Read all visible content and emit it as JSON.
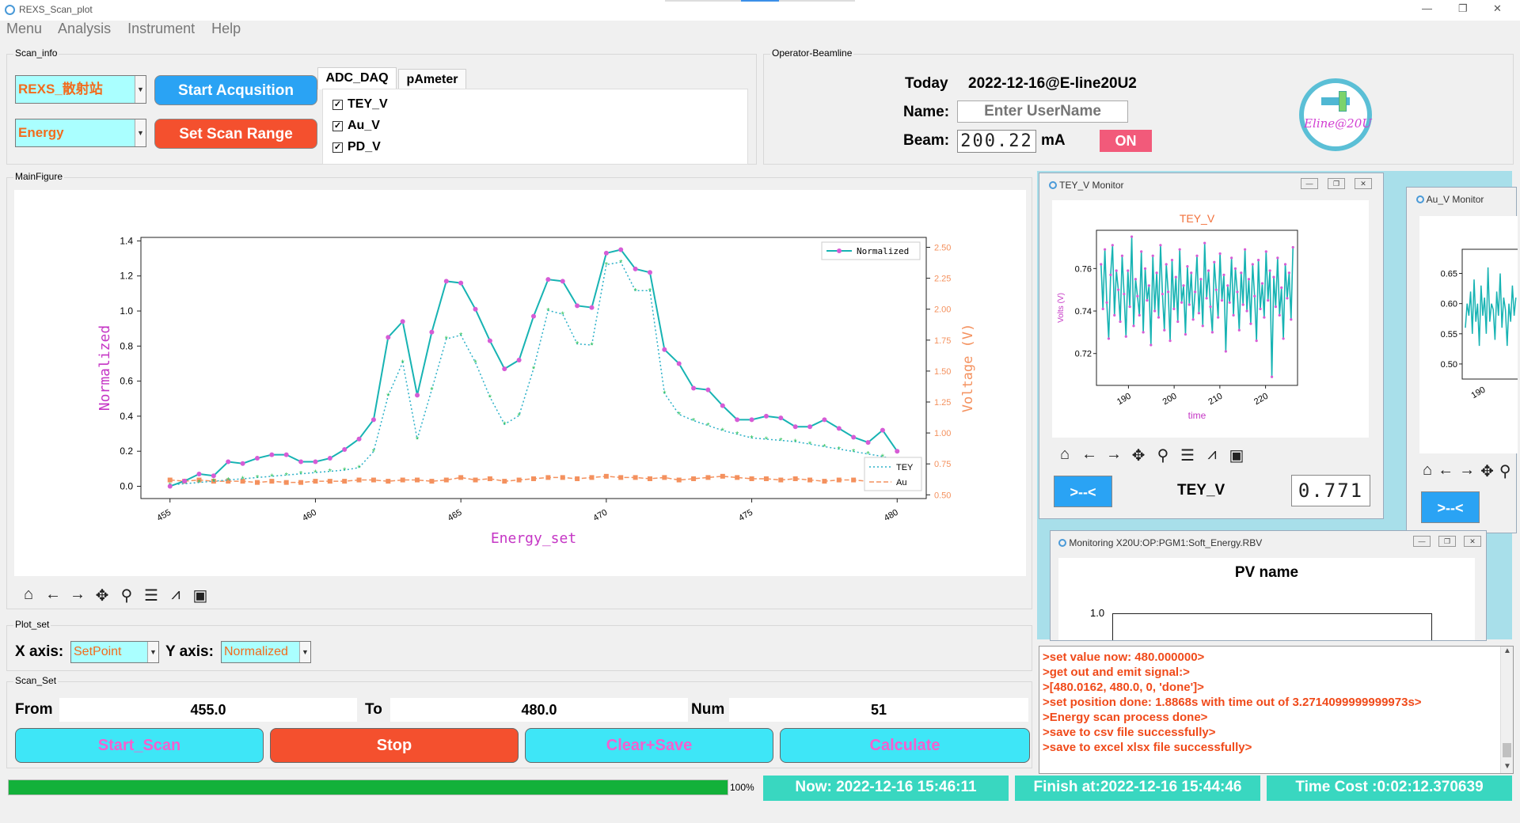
{
  "window": {
    "title": "REXS_Scan_plot",
    "controls": [
      "—",
      "❐",
      "✕"
    ]
  },
  "menu": [
    "Menu",
    "Analysis",
    "Instrument",
    "Help"
  ],
  "scan_info": {
    "group_title": "Scan_info",
    "station_combo": "REXS_散射站",
    "mode_combo": "Energy",
    "start_button": "Start Acqusition",
    "range_button": "Set Scan Range",
    "tabs": [
      "ADC_DAQ",
      "pAmeter"
    ],
    "channels": [
      {
        "label": "TEY_V",
        "checked": true
      },
      {
        "label": "Au_V",
        "checked": true
      },
      {
        "label": "PD_V",
        "checked": true
      }
    ]
  },
  "operator": {
    "group_title": "Operator-Beamline",
    "today_label": "Today",
    "today_value": "2022-12-16@E-line20U2",
    "name_label": "Name:",
    "name_placeholder": "Enter UserName",
    "beam_label": "Beam:",
    "beam_value": "200.22",
    "beam_unit": "mA",
    "beam_status": "ON",
    "logo_text": "Eline@20U"
  },
  "main_figure": {
    "group_title": "MainFigure"
  },
  "toolbar_icons": [
    "home-icon",
    "back-arrow-icon",
    "forward-arrow-icon",
    "pan-icon",
    "zoom-icon",
    "configure-icon",
    "edit-axis-icon",
    "save-icon"
  ],
  "chart_data": {
    "type": "line",
    "xlabel": "Energy_set",
    "ylabel": "Normalized",
    "y2label": "Voltage (V)",
    "xlim": [
      454,
      481
    ],
    "ylim": [
      -0.07,
      1.42
    ],
    "y2lim": [
      0.47,
      2.58
    ],
    "xticks": [
      455,
      460,
      465,
      470,
      475,
      480
    ],
    "yticks": [
      0.0,
      0.2,
      0.4,
      0.6,
      0.8,
      1.0,
      1.2,
      1.4
    ],
    "y2ticks": [
      0.5,
      0.75,
      1.0,
      1.25,
      1.5,
      1.75,
      2.0,
      2.25,
      2.5
    ],
    "legend_left": {
      "position": "top-right",
      "entries": [
        "Normalized"
      ]
    },
    "legend_right": {
      "position": "bottom-right",
      "entries": [
        "TEY",
        "Au"
      ]
    },
    "x": [
      455,
      455.5,
      456,
      456.5,
      457,
      457.5,
      458,
      458.5,
      459,
      459.5,
      460,
      460.5,
      461,
      461.5,
      462,
      462.5,
      463,
      463.5,
      464,
      464.5,
      465,
      465.5,
      466,
      466.5,
      467,
      467.5,
      468,
      468.5,
      469,
      469.5,
      470,
      470.5,
      471,
      471.5,
      472,
      472.5,
      473,
      473.5,
      474,
      474.5,
      475,
      475.5,
      476,
      476.5,
      477,
      477.5,
      478,
      478.5,
      479,
      479.5,
      480
    ],
    "series": [
      {
        "name": "Normalized",
        "color": "#17b3b3",
        "marker_color": "#d65cd6",
        "axis": "left",
        "values": [
          0.0,
          0.03,
          0.07,
          0.06,
          0.14,
          0.13,
          0.16,
          0.18,
          0.18,
          0.14,
          0.14,
          0.16,
          0.21,
          0.27,
          0.38,
          0.85,
          0.94,
          0.52,
          0.88,
          1.17,
          1.16,
          1.01,
          0.83,
          0.67,
          0.72,
          0.97,
          1.18,
          1.17,
          1.03,
          1.02,
          1.33,
          1.35,
          1.24,
          1.22,
          0.78,
          0.7,
          0.56,
          0.55,
          0.46,
          0.38,
          0.38,
          0.4,
          0.39,
          0.34,
          0.34,
          0.38,
          0.33,
          0.28,
          0.25,
          0.32,
          0.2
        ]
      },
      {
        "name": "TEY",
        "color": "#2ec35a",
        "axis": "right",
        "values": [
          0.58,
          0.59,
          0.6,
          0.61,
          0.62,
          0.63,
          0.64,
          0.65,
          0.66,
          0.67,
          0.68,
          0.69,
          0.7,
          0.72,
          0.85,
          1.3,
          1.57,
          0.95,
          1.35,
          1.76,
          1.79,
          1.57,
          1.29,
          1.07,
          1.14,
          1.52,
          1.99,
          1.96,
          1.72,
          1.71,
          2.36,
          2.38,
          2.15,
          2.15,
          1.32,
          1.15,
          1.1,
          1.06,
          1.02,
          0.99,
          0.96,
          0.95,
          0.94,
          0.93,
          0.91,
          0.89,
          0.87,
          0.85,
          0.83,
          0.81,
          0.78
        ]
      },
      {
        "name": "Au",
        "color": "#f4915e",
        "axis": "right",
        "values": [
          0.62,
          0.61,
          0.62,
          0.61,
          0.61,
          0.61,
          0.6,
          0.61,
          0.6,
          0.6,
          0.61,
          0.61,
          0.61,
          0.62,
          0.62,
          0.61,
          0.62,
          0.62,
          0.61,
          0.62,
          0.64,
          0.62,
          0.63,
          0.61,
          0.62,
          0.63,
          0.64,
          0.64,
          0.63,
          0.64,
          0.65,
          0.64,
          0.64,
          0.63,
          0.64,
          0.62,
          0.63,
          0.64,
          0.65,
          0.64,
          0.63,
          0.63,
          0.62,
          0.63,
          0.62,
          0.61,
          0.62,
          0.62,
          0.61,
          0.62,
          0.61
        ]
      }
    ]
  },
  "plot_set": {
    "group_title": "Plot_set",
    "x_label": "X axis:",
    "x_value": "SetPoint",
    "y_label": "Y axis:",
    "y_value": "Normalized"
  },
  "scan_set": {
    "group_title": "Scan_Set",
    "from_label": "From",
    "from_value": "455.0",
    "to_label": "To",
    "to_value": "480.0",
    "num_label": "Num",
    "num_value": "51",
    "buttons": {
      "start": "Start_Scan",
      "stop": "Stop",
      "clear": "Clear+Save",
      "calc": "Calculate"
    }
  },
  "tey_monitor": {
    "window_title": "TEY_V Monitor",
    "plot_title": "TEY_V",
    "xlabel": "time",
    "ylabel": "Volts (V)",
    "xticks": [
      190,
      200,
      210,
      220
    ],
    "yticks": [
      0.72,
      0.74,
      0.76
    ],
    "xlim": [
      183,
      227
    ],
    "ylim": [
      0.705,
      0.778
    ],
    "button": ">--<",
    "label": "TEY_V",
    "value": "0.771",
    "chart_data": {
      "type": "line",
      "x_start": 184,
      "x_end": 226,
      "values": [
        0.762,
        0.741,
        0.769,
        0.744,
        0.727,
        0.757,
        0.771,
        0.738,
        0.759,
        0.75,
        0.735,
        0.766,
        0.748,
        0.728,
        0.759,
        0.742,
        0.775,
        0.733,
        0.755,
        0.747,
        0.738,
        0.768,
        0.73,
        0.76,
        0.745,
        0.752,
        0.724,
        0.766,
        0.74,
        0.758,
        0.737,
        0.771,
        0.748,
        0.731,
        0.762,
        0.749,
        0.726,
        0.764,
        0.741,
        0.756,
        0.735,
        0.769,
        0.744,
        0.752,
        0.729,
        0.761,
        0.743,
        0.758,
        0.736,
        0.749,
        0.766,
        0.739,
        0.755,
        0.733,
        0.772,
        0.746,
        0.759,
        0.742,
        0.73,
        0.763,
        0.75,
        0.737,
        0.767,
        0.745,
        0.757,
        0.721,
        0.752,
        0.744,
        0.765,
        0.738,
        0.76,
        0.749,
        0.731,
        0.758,
        0.743,
        0.769,
        0.74,
        0.755,
        0.734,
        0.762,
        0.747,
        0.726,
        0.764,
        0.741,
        0.753,
        0.737,
        0.768,
        0.745,
        0.759,
        0.709,
        0.756,
        0.742,
        0.765,
        0.738,
        0.751,
        0.727,
        0.762,
        0.746,
        0.758,
        0.736,
        0.77
      ]
    }
  },
  "au_monitor": {
    "window_title": "Au_V Monitor",
    "yticks": [
      0.5,
      0.55,
      0.6,
      0.65
    ],
    "xticks": [
      190
    ],
    "ylim": [
      0.475,
      0.69
    ],
    "button": ">--<",
    "chart_data": {
      "type": "line",
      "values": [
        0.56,
        0.6,
        0.58,
        0.62,
        0.55,
        0.64,
        0.57,
        0.6,
        0.53,
        0.63,
        0.58,
        0.61,
        0.55,
        0.66,
        0.57,
        0.6,
        0.59,
        0.54,
        0.62,
        0.58,
        0.65,
        0.56,
        0.61,
        0.59,
        0.53,
        0.6,
        0.57,
        0.63,
        0.58,
        0.61
      ]
    }
  },
  "pv_monitor": {
    "window_title": "Monitoring X20U:OP:PGM1:Soft_Energy.RBV",
    "heading": "PV name",
    "ytick": "1.0"
  },
  "log": [
    ">set value now: 480.000000>",
    ">get out and emit signal:>",
    ">[480.0162, 480.0, 0, 'done']>",
    ">set position done: 1.8868s with time out of 3.2714099999999973s>",
    ">Energy scan process done>",
    ">save to csv file successfully>",
    ">save to excel xlsx file successfully>"
  ],
  "status": {
    "progress": 1.0,
    "progress_text": "100%",
    "now": "Now: 2022-12-16 15:46:11",
    "finish": "Finish at:2022-12-16 15:44:46",
    "cost": "Time Cost :0:02:12.370639"
  },
  "colors": {
    "accent_cyan": "#39d7c0",
    "button_blue": "#2aa3f4",
    "button_red": "#f4502e",
    "scan_cyan": "#3ee6f7",
    "combo_bg": "#aaffff",
    "text_orange": "#f26b1d",
    "monitor_bg": "#a8dfea"
  }
}
